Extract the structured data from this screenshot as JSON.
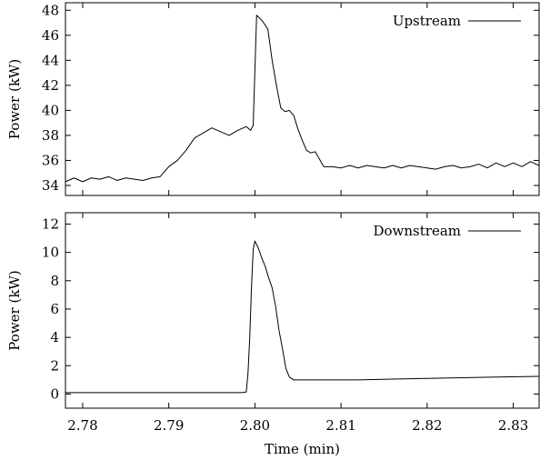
{
  "chart_data": [
    {
      "type": "line",
      "ylabel": "Power (kW)",
      "xlabel": "",
      "xlim": [
        2.778,
        2.833
      ],
      "ylim": [
        33.2,
        48.6
      ],
      "yticks": [
        34,
        36,
        38,
        40,
        42,
        44,
        46,
        48
      ],
      "xticks": [
        2.78,
        2.79,
        2.8,
        2.81,
        2.82,
        2.83
      ],
      "show_xtick_labels": false,
      "legend": "top-right",
      "series": [
        {
          "name": "Upstream",
          "x": [
            2.778,
            2.779,
            2.78,
            2.781,
            2.782,
            2.783,
            2.784,
            2.785,
            2.786,
            2.787,
            2.788,
            2.789,
            2.79,
            2.791,
            2.792,
            2.793,
            2.794,
            2.795,
            2.796,
            2.797,
            2.798,
            2.799,
            2.7995,
            2.7998,
            2.8002,
            2.8008,
            2.8015,
            2.802,
            2.8025,
            2.803,
            2.8035,
            2.804,
            2.8045,
            2.805,
            2.8055,
            2.806,
            2.8065,
            2.807,
            2.808,
            2.809,
            2.81,
            2.811,
            2.812,
            2.813,
            2.814,
            2.815,
            2.816,
            2.817,
            2.818,
            2.819,
            2.82,
            2.821,
            2.822,
            2.823,
            2.824,
            2.825,
            2.826,
            2.827,
            2.828,
            2.829,
            2.83,
            2.831,
            2.832,
            2.833
          ],
          "y": [
            34.3,
            34.6,
            34.3,
            34.6,
            34.5,
            34.7,
            34.4,
            34.6,
            34.5,
            34.4,
            34.6,
            34.7,
            35.5,
            36.0,
            36.8,
            37.8,
            38.2,
            38.6,
            38.3,
            38.0,
            38.4,
            38.7,
            38.4,
            38.8,
            47.6,
            47.2,
            46.5,
            44.0,
            42.0,
            40.2,
            39.9,
            40.0,
            39.6,
            38.5,
            37.6,
            36.8,
            36.6,
            36.7,
            35.5,
            35.5,
            35.4,
            35.6,
            35.4,
            35.6,
            35.5,
            35.4,
            35.6,
            35.4,
            35.6,
            35.5,
            35.4,
            35.3,
            35.5,
            35.6,
            35.4,
            35.5,
            35.7,
            35.4,
            35.8,
            35.5,
            35.8,
            35.5,
            35.9,
            35.6
          ]
        }
      ]
    },
    {
      "type": "line",
      "ylabel": "Power (kW)",
      "xlabel": "Time (min)",
      "xlim": [
        2.778,
        2.833
      ],
      "ylim": [
        -1.0,
        12.8
      ],
      "yticks": [
        0,
        2,
        4,
        6,
        8,
        10,
        12
      ],
      "xticks": [
        2.78,
        2.79,
        2.8,
        2.81,
        2.82,
        2.83
      ],
      "show_xtick_labels": true,
      "legend": "top-right",
      "series": [
        {
          "name": "Downstream",
          "x": [
            2.778,
            2.782,
            2.786,
            2.79,
            2.794,
            2.7985,
            2.799,
            2.7992,
            2.7994,
            2.7996,
            2.7998,
            2.8,
            2.8004,
            2.8008,
            2.8012,
            2.8016,
            2.802,
            2.8024,
            2.8028,
            2.8032,
            2.8036,
            2.804,
            2.8045,
            2.805,
            2.808,
            2.812,
            2.816,
            2.82,
            2.824,
            2.828,
            2.833
          ],
          "y": [
            0.1,
            0.1,
            0.1,
            0.1,
            0.1,
            0.1,
            0.15,
            1.5,
            4.0,
            7.5,
            10.2,
            10.8,
            10.3,
            9.6,
            9.0,
            8.2,
            7.5,
            6.2,
            4.5,
            3.2,
            1.8,
            1.2,
            1.0,
            1.0,
            1.0,
            1.0,
            1.05,
            1.1,
            1.15,
            1.2,
            1.25
          ]
        }
      ]
    }
  ]
}
